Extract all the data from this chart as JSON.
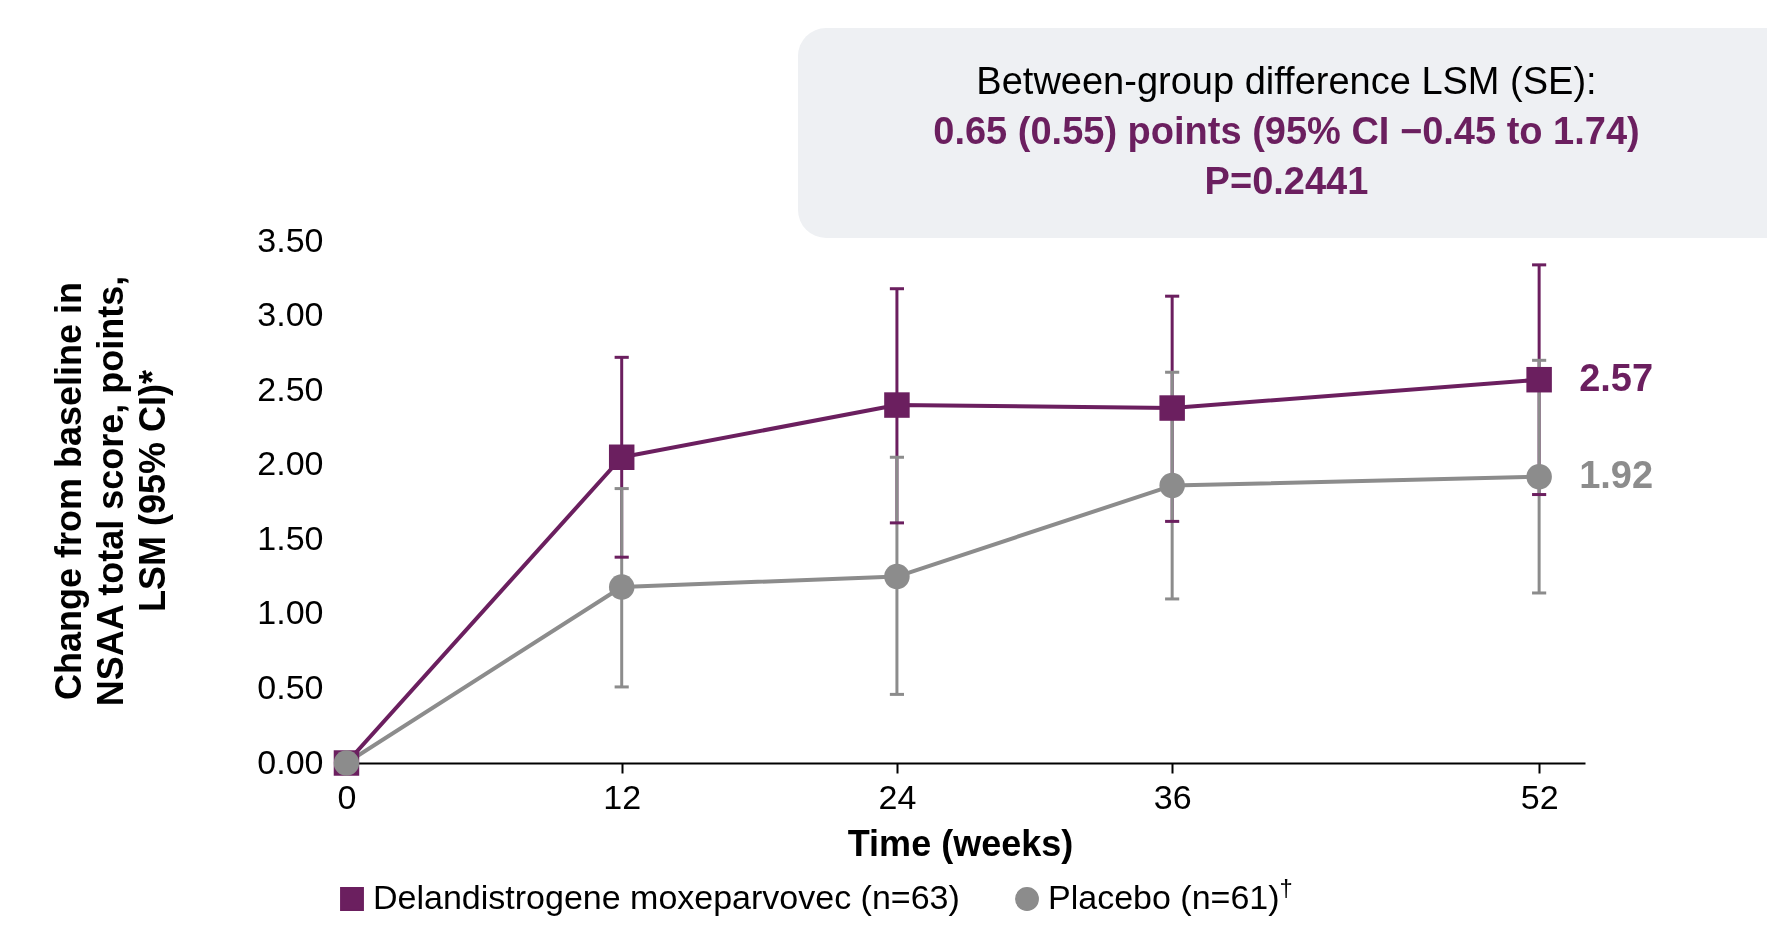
{
  "chart_data": {
    "type": "line",
    "xlabel": "Time (weeks)",
    "ylabel": "Change from baseline in\nNSAA total score, points,\nLSM (95% CI)*",
    "x": [
      0,
      12,
      24,
      36,
      52
    ],
    "xlim": [
      -0.5,
      54
    ],
    "xticks": [
      0,
      12,
      24,
      36,
      52
    ],
    "ylim": [
      0,
      3.5
    ],
    "yticks": [
      {
        "value": 0,
        "label": "0.00"
      },
      {
        "value": 0.5,
        "label": "0.50"
      },
      {
        "value": 1,
        "label": "1.00"
      },
      {
        "value": 1.5,
        "label": "1.50"
      },
      {
        "value": 2,
        "label": "2.00"
      },
      {
        "value": 2.5,
        "label": "2.50"
      },
      {
        "value": 3,
        "label": "3.00"
      },
      {
        "value": 3.5,
        "label": "3.50"
      }
    ],
    "series": [
      {
        "name": "Delandistrogene moxeparvovec (n=63)",
        "color": "#6b1f5f",
        "marker": "square",
        "values": [
          0,
          2.05,
          2.4,
          2.38,
          2.57
        ],
        "errors": [
          null,
          [
            1.38,
            2.72
          ],
          [
            1.61,
            3.18
          ],
          [
            1.62,
            3.13
          ],
          [
            1.8,
            3.34
          ]
        ],
        "value_labels": [
          null,
          null,
          null,
          null,
          "2.57"
        ]
      },
      {
        "name": "Placebo (n=61)$^{†}$",
        "color": "#8c8c8c",
        "marker": "circle",
        "values": [
          0,
          1.18,
          1.25,
          1.86,
          1.92
        ],
        "errors": [
          null,
          [
            0.51,
            1.84
          ],
          [
            0.46,
            2.05
          ],
          [
            1.1,
            2.62
          ],
          [
            1.14,
            2.7
          ]
        ],
        "value_labels": [
          null,
          null,
          null,
          null,
          "1.92"
        ]
      }
    ],
    "annotations": [
      "Between-group difference LSM (SE):",
      "0.65 (0.55) points (95% CI −0.45 to 1.74)",
      "P=0.2441"
    ],
    "grid": false,
    "legend": "bottom"
  }
}
